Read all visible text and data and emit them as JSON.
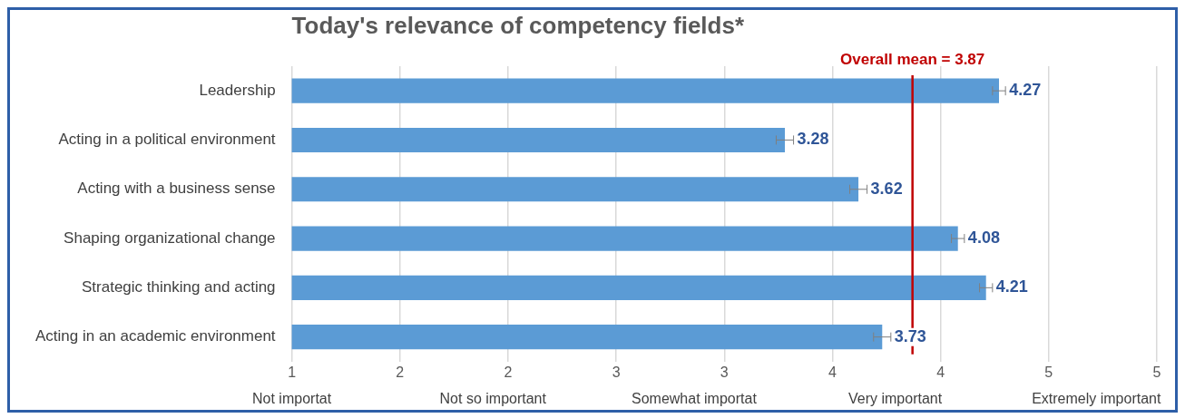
{
  "chart_data": {
    "type": "bar",
    "orientation": "horizontal",
    "title": "Today's relevance of competency fields*",
    "categories": [
      "Leadership",
      "Acting in a political environment",
      "Acting with a business sense",
      "Shaping organizational change",
      "Strategic thinking and acting",
      "Acting in an academic environment"
    ],
    "values": [
      4.27,
      3.28,
      3.62,
      4.08,
      4.21,
      3.73
    ],
    "errors": [
      0.03,
      0.04,
      0.04,
      0.03,
      0.03,
      0.04
    ],
    "color": "#5b9bd5",
    "data_labels": true,
    "xlim": [
      1,
      5
    ],
    "xticks": [
      1,
      {
        "value": 1.5,
        "label": "2"
      },
      2,
      {
        "value": 2.5,
        "label": "3"
      },
      3,
      {
        "value": 3.5,
        "label": "4"
      },
      4,
      {
        "value": 4.5,
        "label": "5"
      },
      5
    ],
    "grid": "x",
    "legend": false,
    "ref_lines": [
      {
        "axis": "x",
        "value": 3.87,
        "label": "Overall mean = 3.87",
        "color": "#c00000"
      }
    ],
    "annotations": [
      "Not importat",
      "Not so important",
      "Somewhat importat",
      "Very important",
      "Extremely important"
    ]
  }
}
